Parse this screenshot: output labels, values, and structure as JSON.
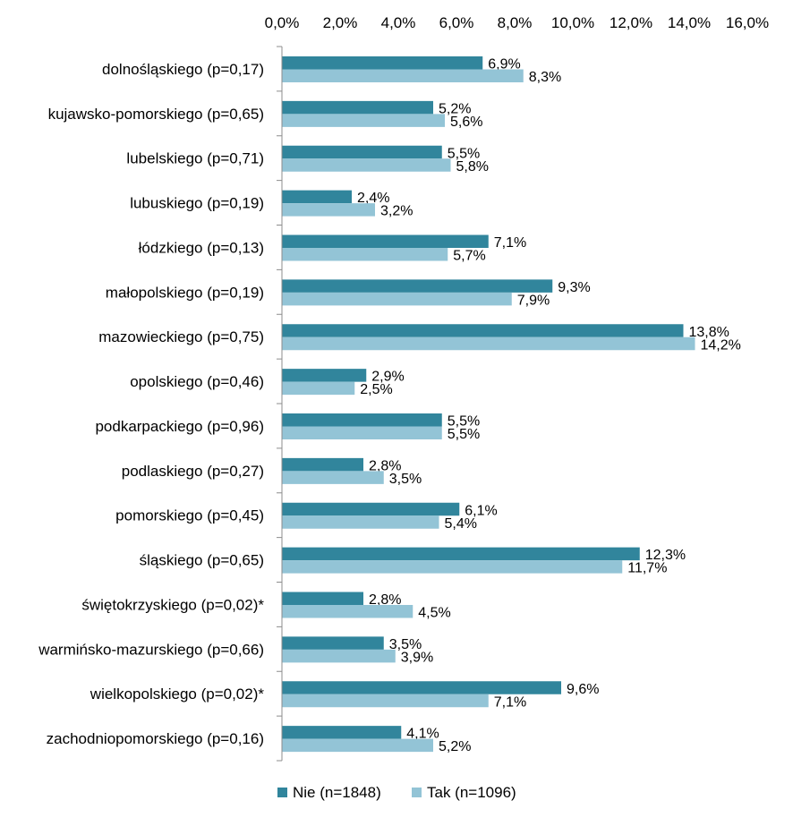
{
  "chart_data": {
    "type": "bar",
    "orientation": "horizontal",
    "categories": [
      "dolnośląskiego (p=0,17)",
      "kujawsko-pomorskiego (p=0,65)",
      "lubelskiego (p=0,71)",
      "lubuskiego (p=0,19)",
      "łódzkiego (p=0,13)",
      "małopolskiego (p=0,19)",
      "mazowieckiego (p=0,75)",
      "opolskiego (p=0,46)",
      "podkarpackiego (p=0,96)",
      "podlaskiego (p=0,27)",
      "pomorskiego (p=0,45)",
      "śląskiego (p=0,65)",
      "świętokrzyskiego (p=0,02)*",
      "warmińsko-mazurskiego (p=0,66)",
      "wielkopolskiego (p=0,02)*",
      "zachodniopomorskiego (p=0,16)"
    ],
    "series": [
      {
        "name": "Nie (n=1848)",
        "color": "#31859c",
        "values": [
          6.9,
          5.2,
          5.5,
          2.4,
          7.1,
          9.3,
          13.8,
          2.9,
          5.5,
          2.8,
          6.1,
          12.3,
          2.8,
          3.5,
          9.6,
          4.1
        ],
        "labels": [
          "6,9%",
          "5,2%",
          "5,5%",
          "2,4%",
          "7,1%",
          "9,3%",
          "13,8%",
          "2,9%",
          "5,5%",
          "2,8%",
          "6,1%",
          "12,3%",
          "2,8%",
          "3,5%",
          "9,6%",
          "4,1%"
        ]
      },
      {
        "name": "Tak (n=1096)",
        "color": "#93c4d6",
        "values": [
          8.3,
          5.6,
          5.8,
          3.2,
          5.7,
          7.9,
          14.2,
          2.5,
          5.5,
          3.5,
          5.4,
          11.7,
          4.5,
          3.9,
          7.1,
          5.2
        ],
        "labels": [
          "8,3%",
          "5,6%",
          "5,8%",
          "3,2%",
          "5,7%",
          "7,9%",
          "14,2%",
          "2,5%",
          "5,5%",
          "3,5%",
          "5,4%",
          "11,7%",
          "4,5%",
          "3,9%",
          "7,1%",
          "5,2%"
        ]
      }
    ],
    "xlim": [
      0,
      16
    ],
    "xticks": [
      0,
      2,
      4,
      6,
      8,
      10,
      12,
      14,
      16
    ],
    "xtick_labels": [
      "0,0%",
      "2,0%",
      "4,0%",
      "6,0%",
      "8,0%",
      "10,0%",
      "12,0%",
      "14,0%",
      "16,0%"
    ],
    "x_axis_position": "top",
    "gridlines": false,
    "legend_position": "bottom"
  }
}
